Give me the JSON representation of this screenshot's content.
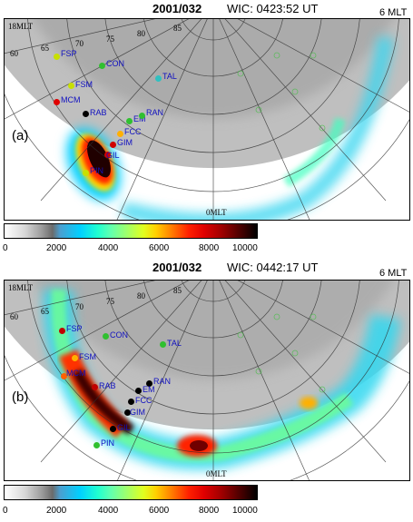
{
  "panels": [
    {
      "date": "2001/032",
      "wic_time": "WIC: 0423:52 UT",
      "panel_label": "(a)",
      "mlt_labels": {
        "left": "18MLT",
        "right": "6 MLT",
        "bottom": "0MLT"
      },
      "lat_labels": [
        "60",
        "65",
        "70",
        "75",
        "80",
        "85"
      ],
      "stations": [
        {
          "code": "FSP",
          "color": "#c8e000"
        },
        {
          "code": "CON",
          "color": "#30c030"
        },
        {
          "code": "TAL",
          "color": "#30c0c0"
        },
        {
          "code": "FSM",
          "color": "#c8e000"
        },
        {
          "code": "MCM",
          "color": "#e00000"
        },
        {
          "code": "RAB",
          "color": "#000000"
        },
        {
          "code": "EM",
          "color": "#30c030"
        },
        {
          "code": "RAN",
          "color": "#30c030"
        },
        {
          "code": "FCC",
          "color": "#ffb000"
        },
        {
          "code": "GIM",
          "color": "#d00000"
        },
        {
          "code": "GIL",
          "color": "#d00000"
        },
        {
          "code": "PIN",
          "color": "#c8e000"
        }
      ]
    },
    {
      "date": "2001/032",
      "wic_time": "WIC: 0442:17 UT",
      "panel_label": "(b)",
      "mlt_labels": {
        "left": "18MLT",
        "right": "6 MLT",
        "bottom": "0MLT"
      },
      "lat_labels": [
        "60",
        "65",
        "70",
        "75",
        "80",
        "85"
      ],
      "stations": [
        {
          "code": "FSP",
          "color": "#c00000"
        },
        {
          "code": "CON",
          "color": "#30c030"
        },
        {
          "code": "TAL",
          "color": "#30c030"
        },
        {
          "code": "FSM",
          "color": "#ffb000"
        },
        {
          "code": "MCM",
          "color": "#ff6000"
        },
        {
          "code": "RAB",
          "color": "#c00000"
        },
        {
          "code": "RAN",
          "color": "#000000"
        },
        {
          "code": "EM",
          "color": "#000000"
        },
        {
          "code": "FCC",
          "color": "#000000"
        },
        {
          "code": "GIM",
          "color": "#000000"
        },
        {
          "code": "GIL",
          "color": "#000000"
        },
        {
          "code": "PIN",
          "color": "#30c030"
        }
      ]
    }
  ],
  "colorbar": {
    "ticks": [
      "0",
      "2000",
      "4000",
      "6000",
      "8000",
      "10000"
    ],
    "min": 0,
    "max": 10000
  }
}
